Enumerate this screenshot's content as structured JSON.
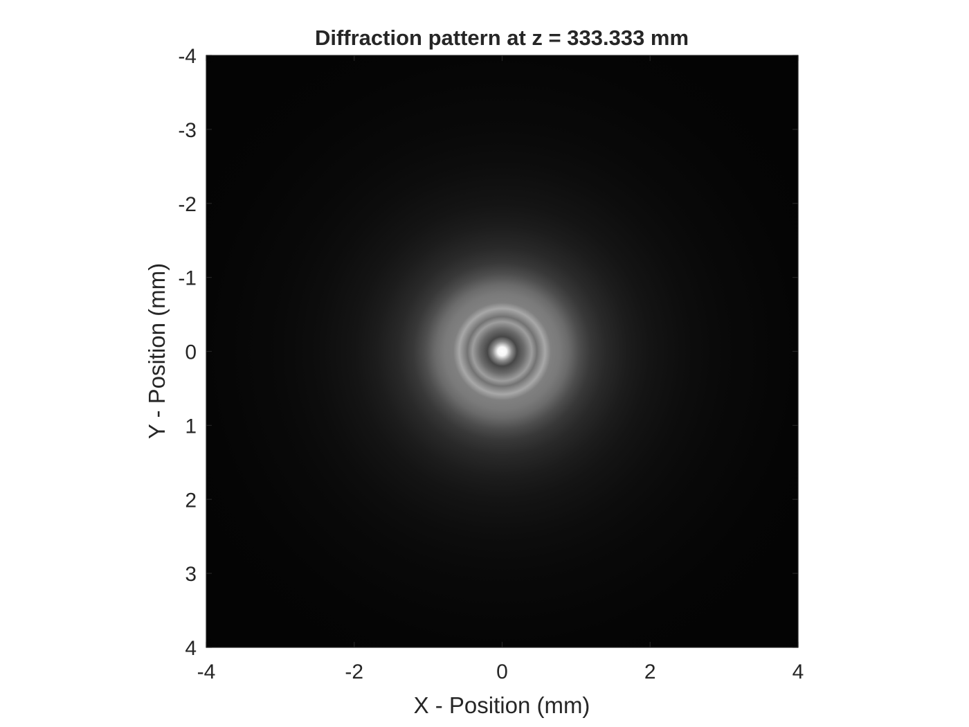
{
  "chart_data": {
    "type": "heatmap",
    "title": "Diffraction pattern at z = 333.333 mm",
    "xlabel": "X - Position (mm)",
    "ylabel": "Y - Position (mm)",
    "xlim": [
      -4,
      4
    ],
    "ylim": [
      -4,
      4
    ],
    "y_axis_direction": "reversed",
    "x_ticks": [
      -4,
      -2,
      0,
      2,
      4
    ],
    "x_tick_labels": [
      "-4",
      "-2",
      "0",
      "2",
      "4"
    ],
    "y_ticks": [
      -4,
      -3,
      -2,
      -1,
      0,
      1,
      2,
      3,
      4
    ],
    "y_tick_labels": [
      "-4",
      "-3",
      "-2",
      "-1",
      "0",
      "1",
      "2",
      "3",
      "4"
    ],
    "colormap": "gray",
    "grid": false,
    "pattern": {
      "shape": "concentric rings",
      "center": [
        0,
        0
      ],
      "intensity_profile": [
        {
          "r": 0.0,
          "v": 1.0
        },
        {
          "r": 0.06,
          "v": 0.97
        },
        {
          "r": 0.13,
          "v": 0.55
        },
        {
          "r": 0.2,
          "v": 0.28
        },
        {
          "r": 0.3,
          "v": 0.42
        },
        {
          "r": 0.4,
          "v": 0.62
        },
        {
          "r": 0.47,
          "v": 0.45
        },
        {
          "r": 0.58,
          "v": 0.66
        },
        {
          "r": 0.66,
          "v": 0.5
        },
        {
          "r": 0.78,
          "v": 0.48
        },
        {
          "r": 0.9,
          "v": 0.42
        },
        {
          "r": 1.05,
          "v": 0.3
        },
        {
          "r": 1.2,
          "v": 0.22
        },
        {
          "r": 1.4,
          "v": 0.16
        },
        {
          "r": 1.7,
          "v": 0.11
        },
        {
          "r": 2.0,
          "v": 0.08
        },
        {
          "r": 2.5,
          "v": 0.05
        },
        {
          "r": 3.0,
          "v": 0.035
        },
        {
          "r": 4.0,
          "v": 0.02
        },
        {
          "r": 6.0,
          "v": 0.01
        }
      ]
    }
  },
  "colors": {
    "background": "#ffffff",
    "plot_frame": "#262626",
    "text": "#262626"
  }
}
